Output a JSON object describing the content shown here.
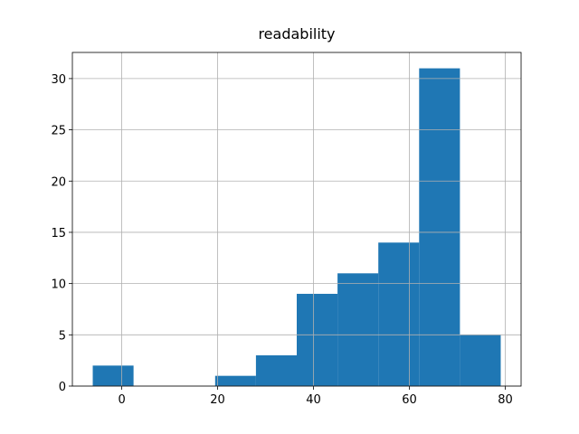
{
  "chart_data": {
    "type": "histogram",
    "title": "readability",
    "bins": [
      -6.05,
      2.46,
      10.97,
      19.48,
      27.99,
      36.5,
      45.01,
      53.52,
      62.03,
      70.54,
      79.05
    ],
    "values": [
      2,
      0,
      0,
      1,
      3,
      9,
      11,
      14,
      31,
      5
    ],
    "color": "#1f77b4",
    "xlim": [
      -10.3,
      83.3
    ],
    "xticks": [
      0,
      20,
      40,
      60,
      80
    ],
    "ylim": [
      0,
      32.55
    ],
    "yticks": [
      0,
      5,
      10,
      15,
      20,
      25,
      30
    ],
    "grid": true
  }
}
